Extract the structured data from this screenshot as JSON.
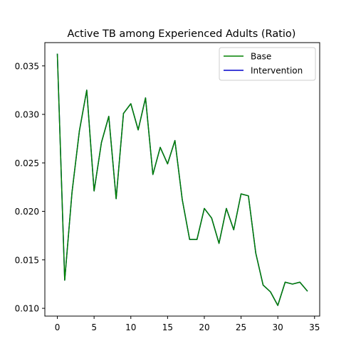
{
  "chart_data": {
    "type": "line",
    "title": "Active TB among Experienced Adults (Ratio)",
    "xlabel": "",
    "ylabel": "",
    "xlim": [
      -1.7,
      35.7
    ],
    "ylim": [
      0.0092,
      0.0374
    ],
    "x_ticks": [
      0,
      5,
      10,
      15,
      20,
      25,
      30,
      35
    ],
    "y_ticks": [
      0.01,
      0.015,
      0.02,
      0.025,
      0.03,
      0.035
    ],
    "y_tick_labels": [
      "0.010",
      "0.015",
      "0.020",
      "0.025",
      "0.030",
      "0.035"
    ],
    "grid": false,
    "legend_position": "upper right",
    "x": [
      0,
      1,
      2,
      3,
      4,
      5,
      6,
      7,
      8,
      9,
      10,
      11,
      12,
      13,
      14,
      15,
      16,
      17,
      18,
      19,
      20,
      21,
      22,
      23,
      24,
      25,
      26,
      27,
      28,
      29,
      30,
      31,
      32,
      33,
      34
    ],
    "series": [
      {
        "name": "Base",
        "color": "#008000",
        "values": [
          0.0362,
          0.0129,
          0.022,
          0.0283,
          0.0325,
          0.0221,
          0.0271,
          0.0298,
          0.0213,
          0.0301,
          0.0311,
          0.0284,
          0.0317,
          0.0238,
          0.0266,
          0.0249,
          0.0273,
          0.0212,
          0.0171,
          0.0171,
          0.0203,
          0.0193,
          0.0167,
          0.0203,
          0.0181,
          0.0218,
          0.0216,
          0.0157,
          0.0124,
          0.0117,
          0.0103,
          0.0127,
          0.0125,
          0.0127,
          0.0118
        ]
      },
      {
        "name": "Intervention",
        "color": "#0000cc",
        "values": [
          0.0362,
          0.0129,
          0.022,
          0.0283,
          0.0325,
          0.0221,
          0.0271,
          0.0298,
          0.0213,
          0.0301,
          0.0311,
          0.0284,
          0.0317,
          0.0238,
          0.0266,
          0.0249,
          0.0273,
          0.0212,
          0.0171,
          0.0171,
          0.0203,
          0.0193,
          0.0167,
          0.0203,
          0.0181,
          0.0218,
          0.0216,
          0.0157,
          0.0124,
          0.0117,
          0.0103,
          0.0127,
          0.0125,
          0.0127,
          0.0118
        ]
      }
    ]
  }
}
